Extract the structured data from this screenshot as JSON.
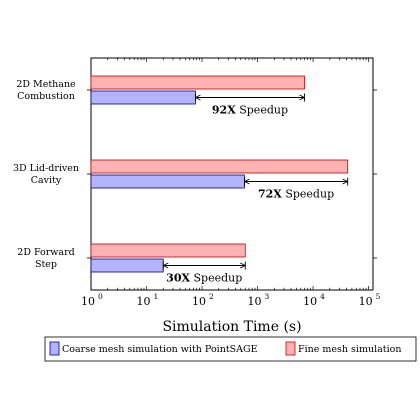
{
  "chart_data": {
    "type": "bar",
    "orientation": "horizontal",
    "x_scale": "log",
    "xlim": [
      1,
      120000
    ],
    "xlabel": "Simulation Time (s)",
    "categories": [
      {
        "line1": "2D Methane",
        "line2": "Combustion"
      },
      {
        "line1": "3D Lid-driven",
        "line2": "Cavity"
      },
      {
        "line1": "2D Forward",
        "line2": "Step"
      }
    ],
    "series": [
      {
        "name": "Fine mesh simulation",
        "color": "#ffb3b3",
        "stroke": "#c00000",
        "values": [
          7000,
          42000,
          600
        ]
      },
      {
        "name": "Coarse mesh simulation with PointSAGE",
        "color": "#b3b3ff",
        "stroke": "#00008b",
        "values": [
          76,
          580,
          20
        ]
      }
    ],
    "annotations": [
      {
        "factor": "92X",
        "label": "Speedup"
      },
      {
        "factor": "72X",
        "label": "Speedup"
      },
      {
        "factor": "30X",
        "label": "Speedup"
      }
    ],
    "x_ticks": [
      {
        "base": "10",
        "exp": "0",
        "value": 1
      },
      {
        "base": "10",
        "exp": "1",
        "value": 10
      },
      {
        "base": "10",
        "exp": "2",
        "value": 100
      },
      {
        "base": "10",
        "exp": "3",
        "value": 1000
      },
      {
        "base": "10",
        "exp": "4",
        "value": 10000
      },
      {
        "base": "10",
        "exp": "5",
        "value": 100000
      }
    ],
    "legend_position": "bottom"
  }
}
